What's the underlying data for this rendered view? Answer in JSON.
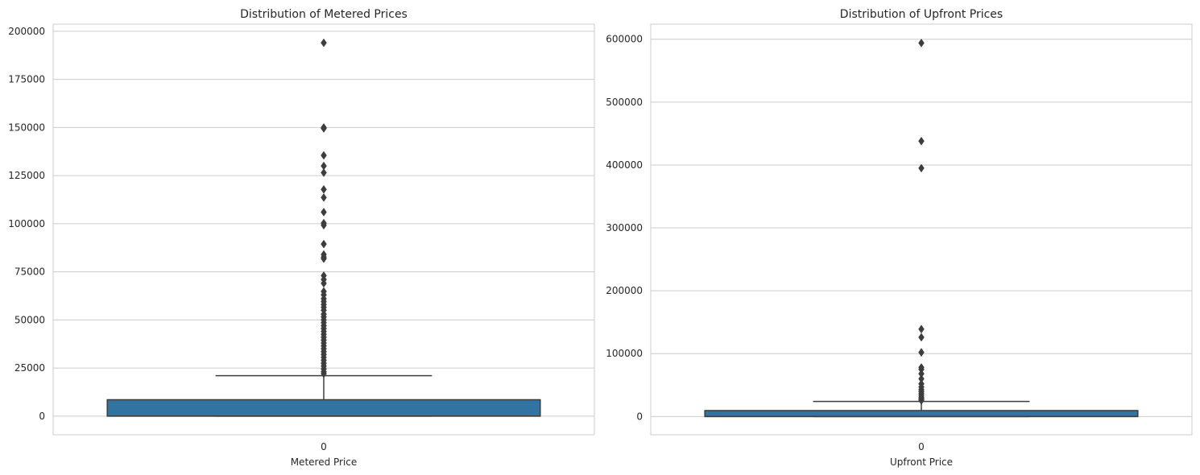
{
  "chart_data": [
    {
      "type": "box",
      "title": "Distribution of Metered Prices",
      "xlabel": "Metered Price",
      "ylabel": "",
      "categories": [
        "0"
      ],
      "ylim": [
        -9700,
        203700
      ],
      "yticks": [
        0,
        25000,
        50000,
        75000,
        100000,
        125000,
        150000,
        175000,
        200000
      ],
      "ytick_labels": [
        "0",
        "25000",
        "50000",
        "75000",
        "100000",
        "125000",
        "150000",
        "175000",
        "200000"
      ],
      "grid": true,
      "color": "#3274a1",
      "box": {
        "q1": 0,
        "median": 0,
        "q3": 8500,
        "whisker_low": 0,
        "whisker_high": 21000
      },
      "outliers": [
        194000,
        150000,
        149500,
        135500,
        130000,
        126500,
        117800,
        113600,
        106000,
        100300,
        99200,
        89400,
        84000,
        82600,
        81800,
        73000,
        71000,
        69000,
        64800,
        63000,
        61000,
        59500,
        58000,
        56500,
        55000,
        53000,
        51500,
        50000,
        48500,
        47000,
        45500,
        44000,
        42500,
        41000,
        39500,
        38000,
        36500,
        35000,
        33500,
        32000,
        30500,
        29000,
        27500,
        26000,
        24500,
        23000,
        22000
      ]
    },
    {
      "type": "box",
      "title": "Distribution of Upfront Prices",
      "xlabel": "Upfront Price",
      "ylabel": "",
      "categories": [
        "0"
      ],
      "ylim": [
        -29000,
        624000
      ],
      "yticks": [
        0,
        100000,
        200000,
        300000,
        400000,
        500000,
        600000
      ],
      "ytick_labels": [
        "0",
        "100000",
        "200000",
        "300000",
        "400000",
        "500000",
        "600000"
      ],
      "grid": true,
      "color": "#3274a1",
      "box": {
        "q1": 0,
        "median": 0,
        "q3": 9500,
        "whisker_low": 0,
        "whisker_high": 24000
      },
      "outliers": [
        594000,
        438000,
        395000,
        139000,
        126000,
        102000,
        78000,
        75000,
        68000,
        60000,
        52000,
        47000,
        43000,
        40000,
        37000,
        34000,
        31000,
        29000,
        27000,
        25500
      ]
    }
  ]
}
